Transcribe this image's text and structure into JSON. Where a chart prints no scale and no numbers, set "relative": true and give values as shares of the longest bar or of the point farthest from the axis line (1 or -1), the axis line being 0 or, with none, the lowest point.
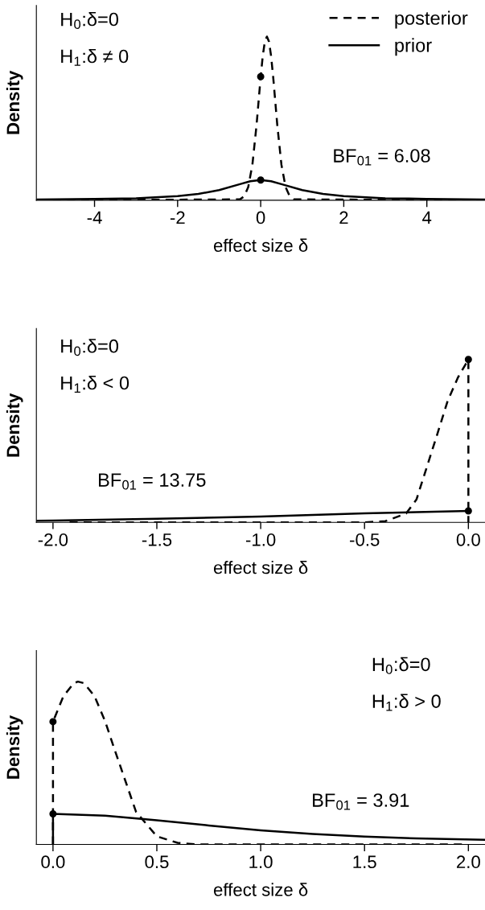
{
  "chart_data": [
    {
      "type": "line",
      "relative": true,
      "xlabel": "effect size δ",
      "ylabel": "Density",
      "xlim": [
        -5.4,
        5.4
      ],
      "xticks": [
        -4,
        -2,
        0,
        2,
        4
      ],
      "tick_labels": "x",
      "legend": "top right",
      "annotations": [
        "H$_{0}$:δ=0",
        "H$_{1}$:δ ≠ 0",
        "BF$_{01}$ = 6.08"
      ],
      "series": [
        {
          "name": "posterior",
          "color": "#000000",
          "line_style": "dashed",
          "x": [
            -5.0,
            -0.5,
            -0.4,
            -0.3,
            -0.2,
            -0.1,
            0,
            0.05,
            0.1,
            0.15,
            0.2,
            0.25,
            0.3,
            0.4,
            0.5,
            0.6,
            0.7,
            0.8,
            5.4
          ],
          "values": [
            0,
            0.005,
            0.023,
            0.08,
            0.216,
            0.458,
            0.755,
            0.882,
            0.969,
            1,
            0.969,
            0.882,
            0.755,
            0.458,
            0.216,
            0.08,
            0.023,
            0.005,
            0
          ]
        },
        {
          "name": "prior",
          "color": "#000000",
          "line_style": "solid",
          "x": [
            -5.4,
            -4,
            -3,
            -2,
            -1.5,
            -1,
            -0.5,
            -0.25,
            0,
            0.25,
            0.5,
            1,
            1.5,
            2,
            3,
            4,
            5.4
          ],
          "values": [
            0.004,
            0.008,
            0.012,
            0.025,
            0.038,
            0.062,
            0.098,
            0.116,
            0.123,
            0.116,
            0.098,
            0.062,
            0.038,
            0.025,
            0.012,
            0.008,
            0.004
          ]
        },
        {
          "type": "scatter",
          "color": "#000000",
          "marker": "circle",
          "x": [
            0,
            0
          ],
          "values": [
            0.755,
            0.123
          ]
        }
      ]
    },
    {
      "type": "line",
      "relative": true,
      "xlabel": "effect size δ",
      "ylabel": "Density",
      "xlim": [
        -2.08,
        0.08
      ],
      "xticks": [
        {
          "value": -2,
          "label": "-2.0"
        },
        {
          "value": -1.5,
          "label": "-1.5"
        },
        {
          "value": -1,
          "label": "-1.0"
        },
        {
          "value": -0.5,
          "label": "-0.5"
        },
        {
          "value": 0,
          "label": "0.0"
        }
      ],
      "tick_labels": "x",
      "annotations": [
        "H$_{0}$:δ=0",
        "H$_{1}$:δ < 0",
        "BF$_{01}$ = 13.75"
      ],
      "series": [
        {
          "color": "#000000",
          "line_style": "dashed",
          "x": [
            -1.92,
            -0.5,
            -0.4,
            -0.3,
            -0.25,
            -0.2,
            -0.15,
            -0.1,
            -0.05,
            0,
            0
          ],
          "values": [
            0,
            0,
            0.007,
            0.054,
            0.14,
            0.34,
            0.54,
            0.745,
            0.89,
            1,
            0
          ]
        },
        {
          "color": "#000000",
          "line_style": "solid",
          "x": [
            -2.08,
            -2,
            -1.5,
            -1,
            -0.5,
            -0.25,
            0
          ],
          "values": [
            0.01,
            0.011,
            0.022,
            0.035,
            0.055,
            0.063,
            0.07
          ]
        },
        {
          "type": "scatter",
          "color": "#000000",
          "marker": "circle",
          "x": [
            0,
            0
          ],
          "values": [
            1,
            0.07
          ]
        }
      ]
    },
    {
      "type": "line",
      "relative": true,
      "xlabel": "effect size δ",
      "ylabel": "Density",
      "xlim": [
        -0.08,
        2.08
      ],
      "xticks": [
        {
          "value": 0,
          "label": "0.0"
        },
        {
          "value": 0.5,
          "label": "0.5"
        },
        {
          "value": 1,
          "label": "1.0"
        },
        {
          "value": 1.5,
          "label": "1.5"
        },
        {
          "value": 2,
          "label": "2.0"
        }
      ],
      "tick_labels": "x",
      "annotations": [
        "H$_{0}$:δ=0",
        "H$_{1}$:δ > 0",
        "BF$_{01}$ = 3.91"
      ],
      "series": [
        {
          "color": "#000000",
          "line_style": "dashed",
          "x": [
            0,
            0,
            0.05,
            0.1,
            0.12,
            0.15,
            0.2,
            0.25,
            0.3,
            0.4,
            0.5,
            0.6,
            0.7,
            1.99
          ],
          "values": [
            0,
            0.754,
            0.91,
            0.99,
            1,
            0.99,
            0.91,
            0.76,
            0.57,
            0.2,
            0.05,
            0.01,
            0,
            0
          ]
        },
        {
          "color": "#000000",
          "line_style": "solid",
          "x": [
            0,
            0,
            0.25,
            0.5,
            0.75,
            1,
            1.25,
            1.5,
            1.75,
            2.08
          ],
          "values": [
            0,
            0.188,
            0.177,
            0.149,
            0.117,
            0.087,
            0.064,
            0.048,
            0.037,
            0.029
          ]
        },
        {
          "type": "scatter",
          "color": "#000000",
          "marker": "circle",
          "x": [
            0,
            0
          ],
          "values": [
            0.754,
            0.188
          ]
        }
      ]
    }
  ]
}
